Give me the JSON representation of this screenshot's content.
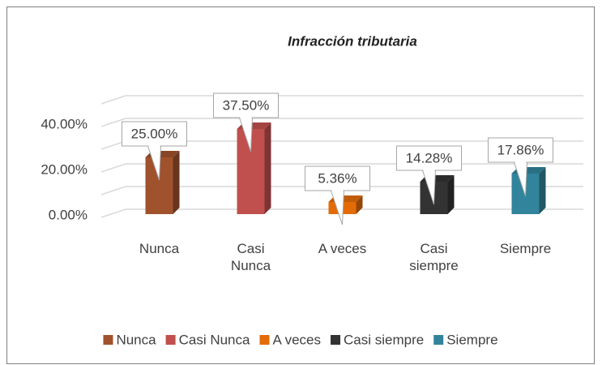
{
  "chart_data": {
    "type": "bar3d",
    "title": "Infracción tributaria",
    "categories": [
      "Nunca",
      "Casi Nunca",
      "A veces",
      "Casi siempre",
      "Siempre"
    ],
    "values": [
      25.0,
      37.5,
      5.36,
      14.28,
      17.86
    ],
    "value_labels": [
      "25.00%",
      "37.50%",
      "5.36%",
      "14.28%",
      "17.86%"
    ],
    "colors": [
      "#a0522d",
      "#c0504d",
      "#e36c09",
      "#333333",
      "#31849b"
    ],
    "ylim": [
      0,
      50
    ],
    "yticks": [
      {
        "value": 0,
        "label": "0.00%"
      },
      {
        "value": 20,
        "label": "20.00%"
      },
      {
        "value": 40,
        "label": "40.00%"
      }
    ],
    "minor_yticks": [
      10,
      30,
      50
    ],
    "grid": true,
    "legend": "bottom"
  }
}
